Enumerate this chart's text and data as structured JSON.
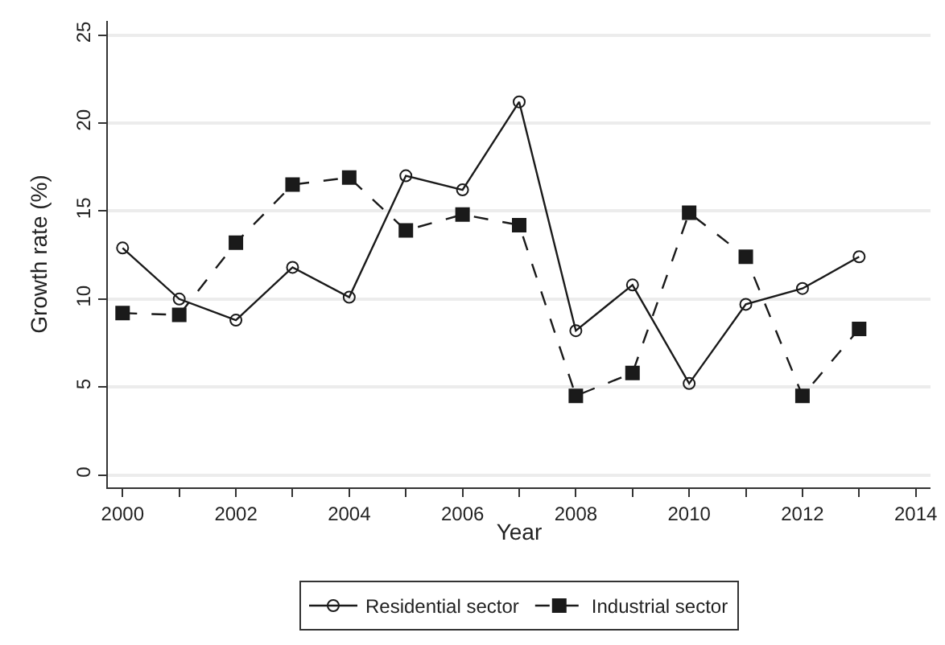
{
  "chart_data": {
    "type": "line",
    "xlabel": "Year",
    "ylabel": "Growth rate (%)",
    "x": [
      2000,
      2001,
      2002,
      2003,
      2004,
      2005,
      2006,
      2007,
      2008,
      2009,
      2010,
      2011,
      2012,
      2013
    ],
    "series": [
      {
        "name": "Residential sector",
        "color": "#1a1a1a",
        "marker": "circle",
        "line_style": "solid",
        "values": [
          12.9,
          10.0,
          8.8,
          11.8,
          10.1,
          17.0,
          16.2,
          21.2,
          8.2,
          10.8,
          5.2,
          9.7,
          10.6,
          12.4
        ]
      },
      {
        "name": "Industrial sector",
        "color": "#1a1a1a",
        "marker": "square",
        "line_style": "dashed",
        "values": [
          9.2,
          9.1,
          13.2,
          16.5,
          16.9,
          13.9,
          14.8,
          14.2,
          4.5,
          5.8,
          14.9,
          12.4,
          4.5,
          8.3
        ]
      }
    ],
    "xlim": [
      1999.74,
      2014.26
    ],
    "xticks": [
      2000,
      {
        "value": 2001,
        "label": null
      },
      2002,
      {
        "value": 2003,
        "label": null
      },
      2004,
      {
        "value": 2005,
        "label": null
      },
      2006,
      {
        "value": 2007,
        "label": null
      },
      2008,
      {
        "value": 2009,
        "label": null
      },
      2010,
      {
        "value": 2011,
        "label": null
      },
      2012,
      {
        "value": 2013,
        "label": null
      },
      2014
    ],
    "ylim": [
      -0.7,
      25.8
    ],
    "yticks": [
      0,
      5,
      10,
      15,
      20,
      25
    ],
    "grid": "y",
    "legend": "bottom"
  }
}
